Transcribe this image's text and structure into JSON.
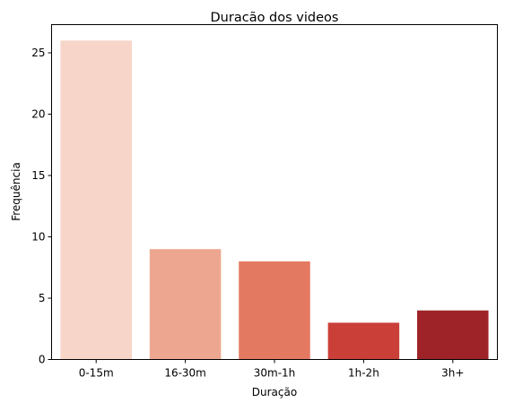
{
  "chart_data": {
    "type": "bar",
    "title": "Duracão dos videos",
    "xlabel": "Duração",
    "ylabel": "Frequência",
    "categories": [
      "0-15m",
      "16-30m",
      "30m-1h",
      "1h-2h",
      "3h+"
    ],
    "values": [
      26,
      9,
      8,
      3,
      4
    ],
    "colors": [
      "#f7d5c8",
      "#eda790",
      "#e47961",
      "#cb3f39",
      "#9d2329"
    ],
    "yticks": [
      "0",
      "5",
      "10",
      "15",
      "20",
      "25"
    ],
    "ylim": [
      0,
      27.3
    ],
    "grid": false,
    "legend": "none"
  }
}
